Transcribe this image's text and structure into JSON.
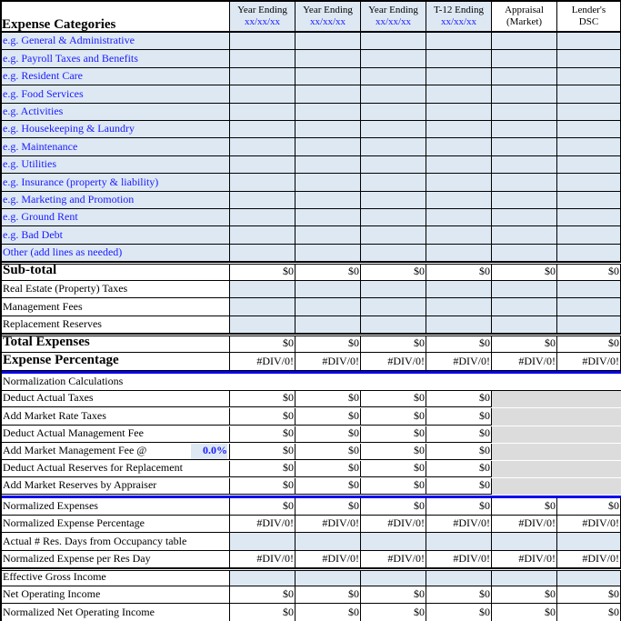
{
  "header": {
    "title": "Expense Categories",
    "columns": [
      {
        "line1": "Year Ending",
        "line2": "xx/xx/xx"
      },
      {
        "line1": "Year Ending",
        "line2": "xx/xx/xx"
      },
      {
        "line1": "Year Ending",
        "line2": "xx/xx/xx"
      },
      {
        "line1": "T-12 Ending",
        "line2": "xx/xx/xx"
      },
      {
        "line1": "Appraisal",
        "line2": "(Market)"
      },
      {
        "line1": "Lender's",
        "line2": "DSC"
      }
    ]
  },
  "rows": [
    {
      "label": "e.g. General & Administrative",
      "kind": "cat"
    },
    {
      "label": "e.g. Payroll Taxes and Benefits",
      "kind": "cat"
    },
    {
      "label": "e.g. Resident Care",
      "kind": "cat"
    },
    {
      "label": "e.g. Food Services",
      "kind": "cat"
    },
    {
      "label": "e.g. Activities",
      "kind": "cat"
    },
    {
      "label": "e.g. Housekeeping  & Laundry",
      "kind": "cat"
    },
    {
      "label": "e.g. Maintenance",
      "kind": "cat"
    },
    {
      "label": "e.g. Utilities",
      "kind": "cat"
    },
    {
      "label": "e.g. Insurance (property & liability)",
      "kind": "cat"
    },
    {
      "label": "e.g. Marketing and Promotion",
      "kind": "cat"
    },
    {
      "label": "e.g. Ground Rent",
      "kind": "cat"
    },
    {
      "label": "e.g. Bad Debt",
      "kind": "cat"
    },
    {
      "label": "Other (add lines as needed)",
      "kind": "cat"
    },
    {
      "label": "Sub-total",
      "kind": "bold",
      "values": [
        "$0",
        "$0",
        "$0",
        "$0",
        "$0",
        "$0"
      ]
    },
    {
      "label": "Real Estate (Property) Taxes",
      "kind": "input"
    },
    {
      "label": "Management Fees",
      "kind": "input"
    },
    {
      "label": "Replacement Reserves",
      "kind": "input"
    },
    {
      "label": "Total Expenses",
      "kind": "bold",
      "values": [
        "$0",
        "$0",
        "$0",
        "$0",
        "$0",
        "$0"
      ]
    },
    {
      "label": "Expense Percentage",
      "kind": "bold",
      "values": [
        "#DIV/0!",
        "#DIV/0!",
        "#DIV/0!",
        "#DIV/0!",
        "#DIV/0!",
        "#DIV/0!"
      ]
    },
    {
      "label": "Normalization Calculations",
      "kind": "section"
    },
    {
      "label": "Deduct Actual Taxes",
      "kind": "norm",
      "values": [
        "$0",
        "$0",
        "$0",
        "$0"
      ]
    },
    {
      "label": "Add Market Rate Taxes",
      "kind": "norm",
      "values": [
        "$0",
        "$0",
        "$0",
        "$0"
      ]
    },
    {
      "label": "Deduct Actual Management Fee",
      "kind": "norm",
      "values": [
        "$0",
        "$0",
        "$0",
        "$0"
      ]
    },
    {
      "label": "Add Market Management Fee @",
      "kind": "norm",
      "pct": "0.0%",
      "values": [
        "$0",
        "$0",
        "$0",
        "$0"
      ]
    },
    {
      "label": "Deduct Actual Reserves for Replacement",
      "kind": "norm",
      "values": [
        "$0",
        "$0",
        "$0",
        "$0"
      ]
    },
    {
      "label": "Add Market Reserves by Appraiser",
      "kind": "norm",
      "values": [
        "$0",
        "$0",
        "$0",
        "$0"
      ]
    },
    {
      "label": "Normalized Expenses",
      "kind": "plain",
      "values": [
        "$0",
        "$0",
        "$0",
        "$0",
        "$0",
        "$0"
      ]
    },
    {
      "label": "Normalized Expense Percentage",
      "kind": "plain",
      "values": [
        "#DIV/0!",
        "#DIV/0!",
        "#DIV/0!",
        "#DIV/0!",
        "#DIV/0!",
        "#DIV/0!"
      ]
    },
    {
      "label": "Actual # Res. Days from Occupancy table",
      "kind": "input"
    },
    {
      "label": "Normalized Expense per Res Day",
      "kind": "plain",
      "values": [
        "#DIV/0!",
        "#DIV/0!",
        "#DIV/0!",
        "#DIV/0!",
        "#DIV/0!",
        "#DIV/0!"
      ]
    },
    {
      "label": "Effective Gross Income",
      "kind": "input"
    },
    {
      "label": "Net Operating Income",
      "kind": "plain",
      "values": [
        "$0",
        "$0",
        "$0",
        "$0",
        "$0",
        "$0"
      ]
    },
    {
      "label": "Normalized Net Operating Income",
      "kind": "plain",
      "values": [
        "$0",
        "$0",
        "$0",
        "$0",
        "$0",
        "$0"
      ]
    }
  ],
  "colors": {
    "input_fill": "#dde8f3",
    "locked_fill": "#dcdcdc",
    "accent": "#0000ee",
    "category_text": "#1a1aff"
  }
}
